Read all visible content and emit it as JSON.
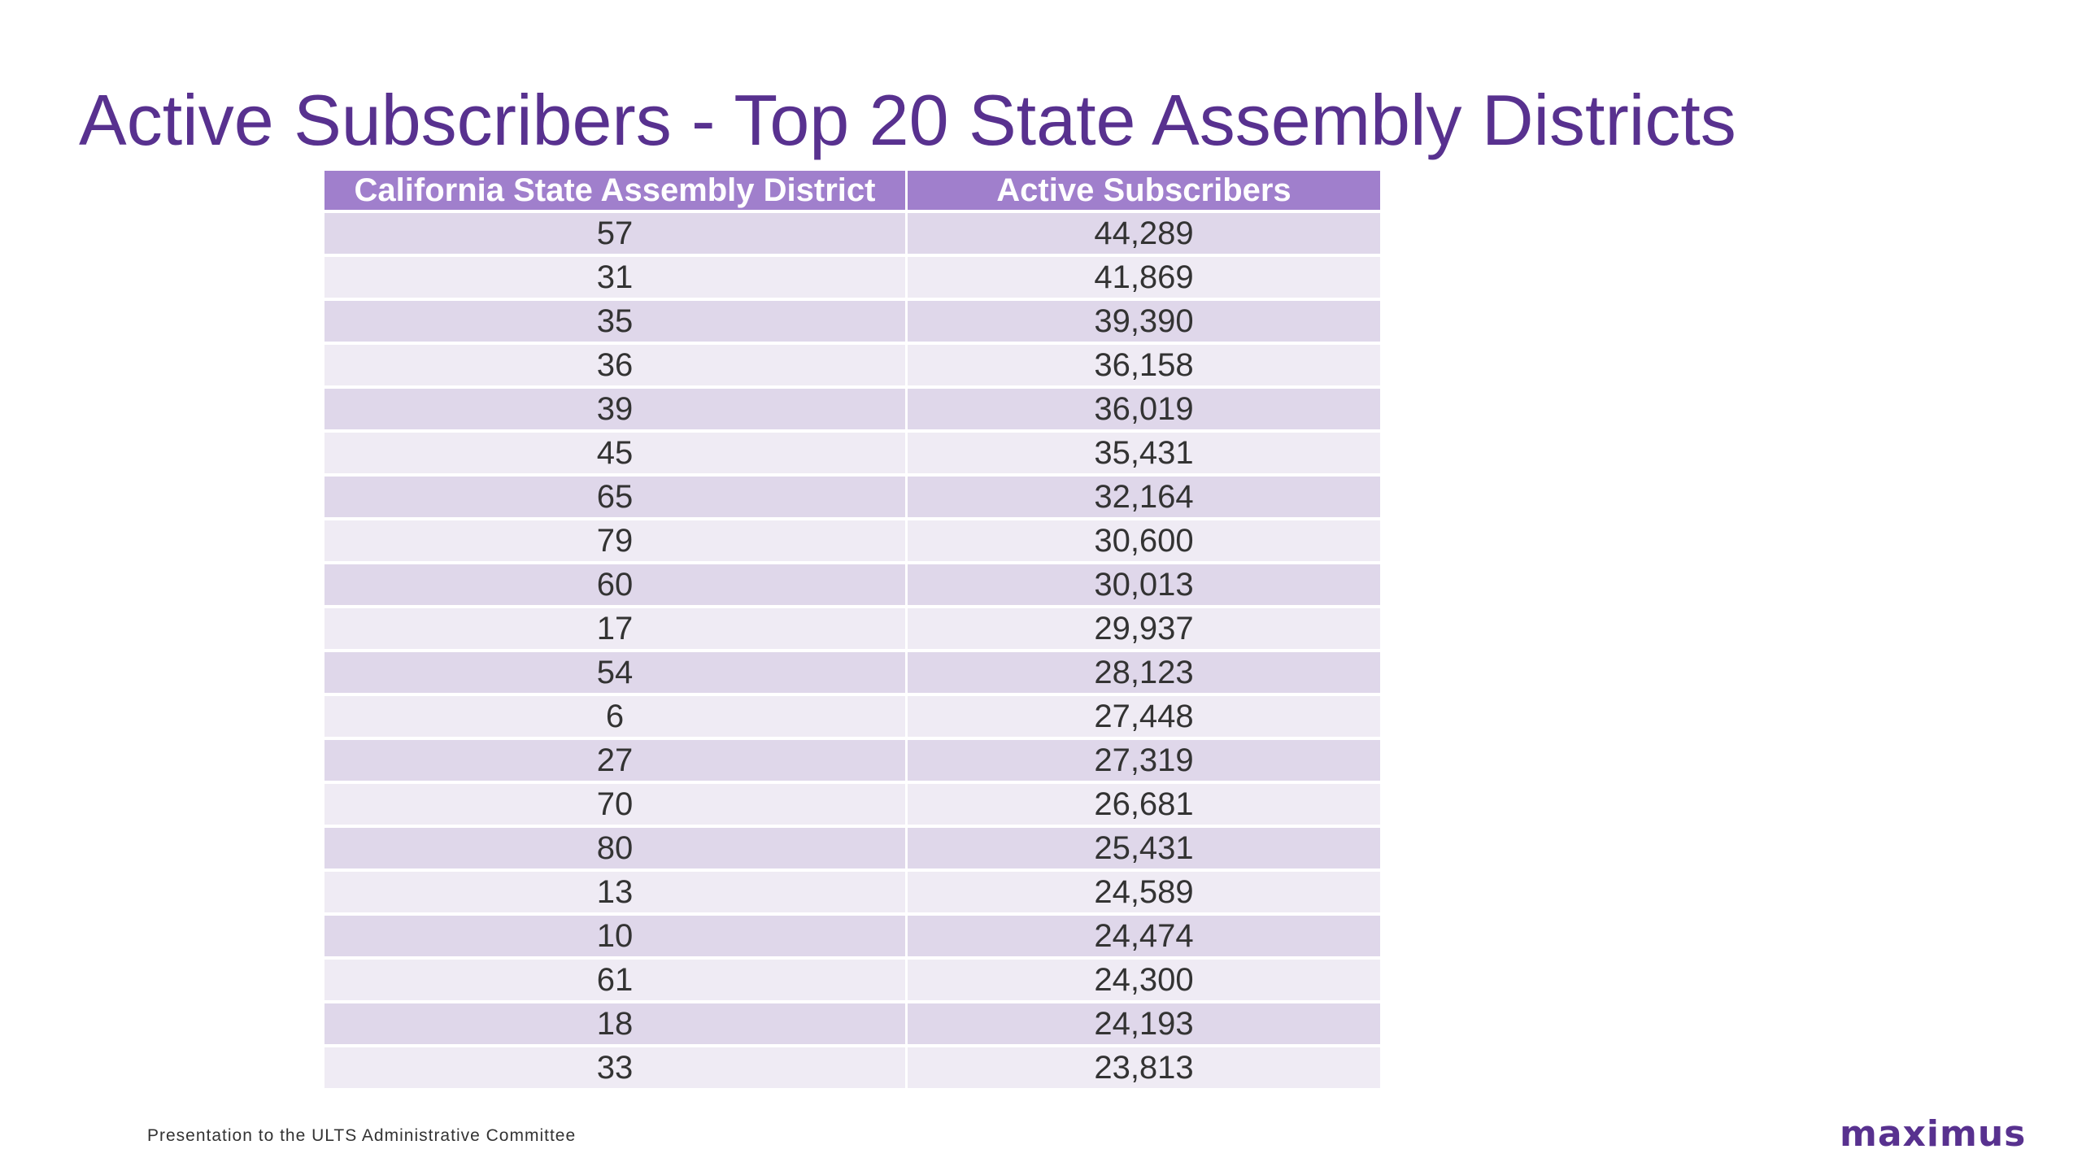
{
  "slide": {
    "title": "Active Subscribers - Top 20 State Assembly Districts",
    "footer": "Presentation to the ULTS Administrative Committee",
    "logo_text": "maximus",
    "colors": {
      "title": "#58318f",
      "header_bg": "#a07fcc",
      "row_odd": "#dfd7ea",
      "row_even": "#efebf4",
      "logo": "#58318f"
    }
  },
  "table": {
    "columns": [
      "California State Assembly District",
      "Active Subscribers"
    ],
    "rows": [
      [
        "57",
        "44,289"
      ],
      [
        "31",
        "41,869"
      ],
      [
        "35",
        "39,390"
      ],
      [
        "36",
        "36,158"
      ],
      [
        "39",
        "36,019"
      ],
      [
        "45",
        "35,431"
      ],
      [
        "65",
        "32,164"
      ],
      [
        "79",
        "30,600"
      ],
      [
        "60",
        "30,013"
      ],
      [
        "17",
        "29,937"
      ],
      [
        "54",
        "28,123"
      ],
      [
        "6",
        "27,448"
      ],
      [
        "27",
        "27,319"
      ],
      [
        "70",
        "26,681"
      ],
      [
        "80",
        "25,431"
      ],
      [
        "13",
        "24,589"
      ],
      [
        "10",
        "24,474"
      ],
      [
        "61",
        "24,300"
      ],
      [
        "18",
        "24,193"
      ],
      [
        "33",
        "23,813"
      ]
    ]
  }
}
